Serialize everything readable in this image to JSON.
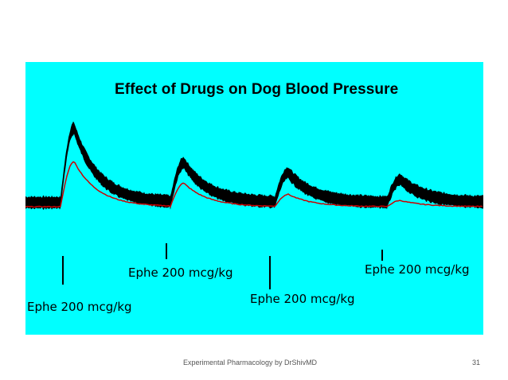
{
  "chart_data": {
    "type": "line",
    "title": "Effect of Drugs on Dog Blood Pressure",
    "xlabel": "",
    "ylabel": "",
    "grid": false,
    "series": [
      {
        "kind": "pressure-trace",
        "color": "#000000",
        "peaks": [
          {
            "x": 93,
            "y": 160
          },
          {
            "x": 231,
            "y": 104
          },
          {
            "x": 362,
            "y": 88
          },
          {
            "x": 503,
            "y": 77
          }
        ],
        "baseline": 40
      },
      {
        "kind": "mean-pressure",
        "color": "#cc0000",
        "peaks": [
          {
            "x": 93,
            "y": 73
          },
          {
            "x": 231,
            "y": 38
          },
          {
            "x": 362,
            "y": 20
          },
          {
            "x": 503,
            "y": 10
          }
        ],
        "baseline": 0
      }
    ],
    "annotations": [
      {
        "text": "Ephe 200 mcg/kg",
        "x": 78
      },
      {
        "text": "Ephe 200 mcg/kg",
        "x": 209
      },
      {
        "text": "Ephe 200 mcg/kg",
        "x": 339
      },
      {
        "text": "Ephe 200 mcg/kg",
        "x": 480
      }
    ]
  },
  "footer": {
    "text": "Experimental Pharmacology by DrShivMD",
    "page": "31"
  },
  "colors": {
    "background": "#00ffff",
    "trace": "#000000",
    "mean": "#cc0000"
  }
}
